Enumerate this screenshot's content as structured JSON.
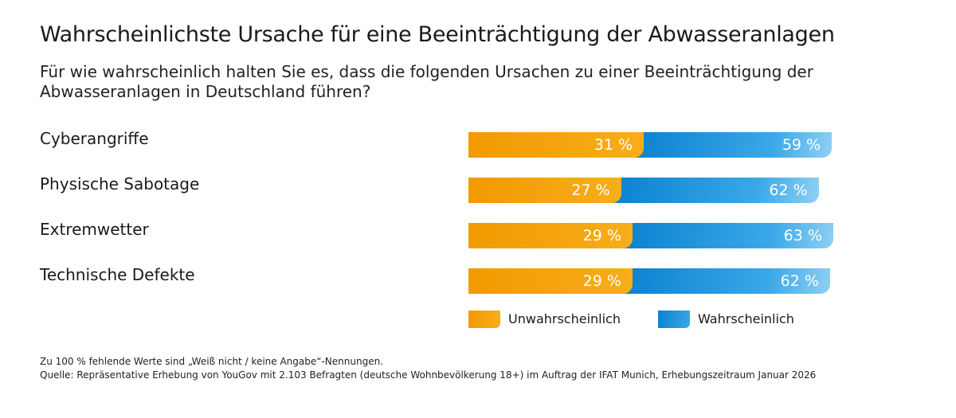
{
  "chart_data": {
    "type": "bar",
    "stacked": true,
    "orientation": "horizontal",
    "title": "Wahrscheinlichste Ursache für eine Beeinträchtigung der Abwasseranlagen",
    "subtitle": "Für wie wahrscheinlich halten Sie es, dass die folgenden Ursachen zu einer Beeinträchtigung der Abwasseranlagen in Deutschland führen?",
    "categories": [
      "Cyberangriffe",
      "Physische Sabotage",
      "Extremwetter",
      "Technische Defekte"
    ],
    "series": [
      {
        "name": "Unwahrscheinlich",
        "values": [
          31,
          27,
          29,
          29
        ],
        "labels": [
          "31 %",
          "27 %",
          "29 %",
          "29 %"
        ],
        "color": "#f29a00"
      },
      {
        "name": "Wahrscheinlich",
        "values": [
          59,
          62,
          63,
          62
        ],
        "labels": [
          "59 %",
          "62 %",
          "63 %",
          "62 %"
        ],
        "color": "#1a8fd8"
      }
    ],
    "legend": "bottom",
    "grid": false
  },
  "footnotes": [
    "Zu 100 % fehlende Werte sind „Weiß nicht / keine Angabe“-Nennungen.",
    "Quelle: Repräsentative Erhebung von YouGov mit 2.103 Befragten (deutsche Wohnbevölkerung 18+) im Auftrag der IFAT Munich, Erhebungszeitraum Januar 2026"
  ]
}
